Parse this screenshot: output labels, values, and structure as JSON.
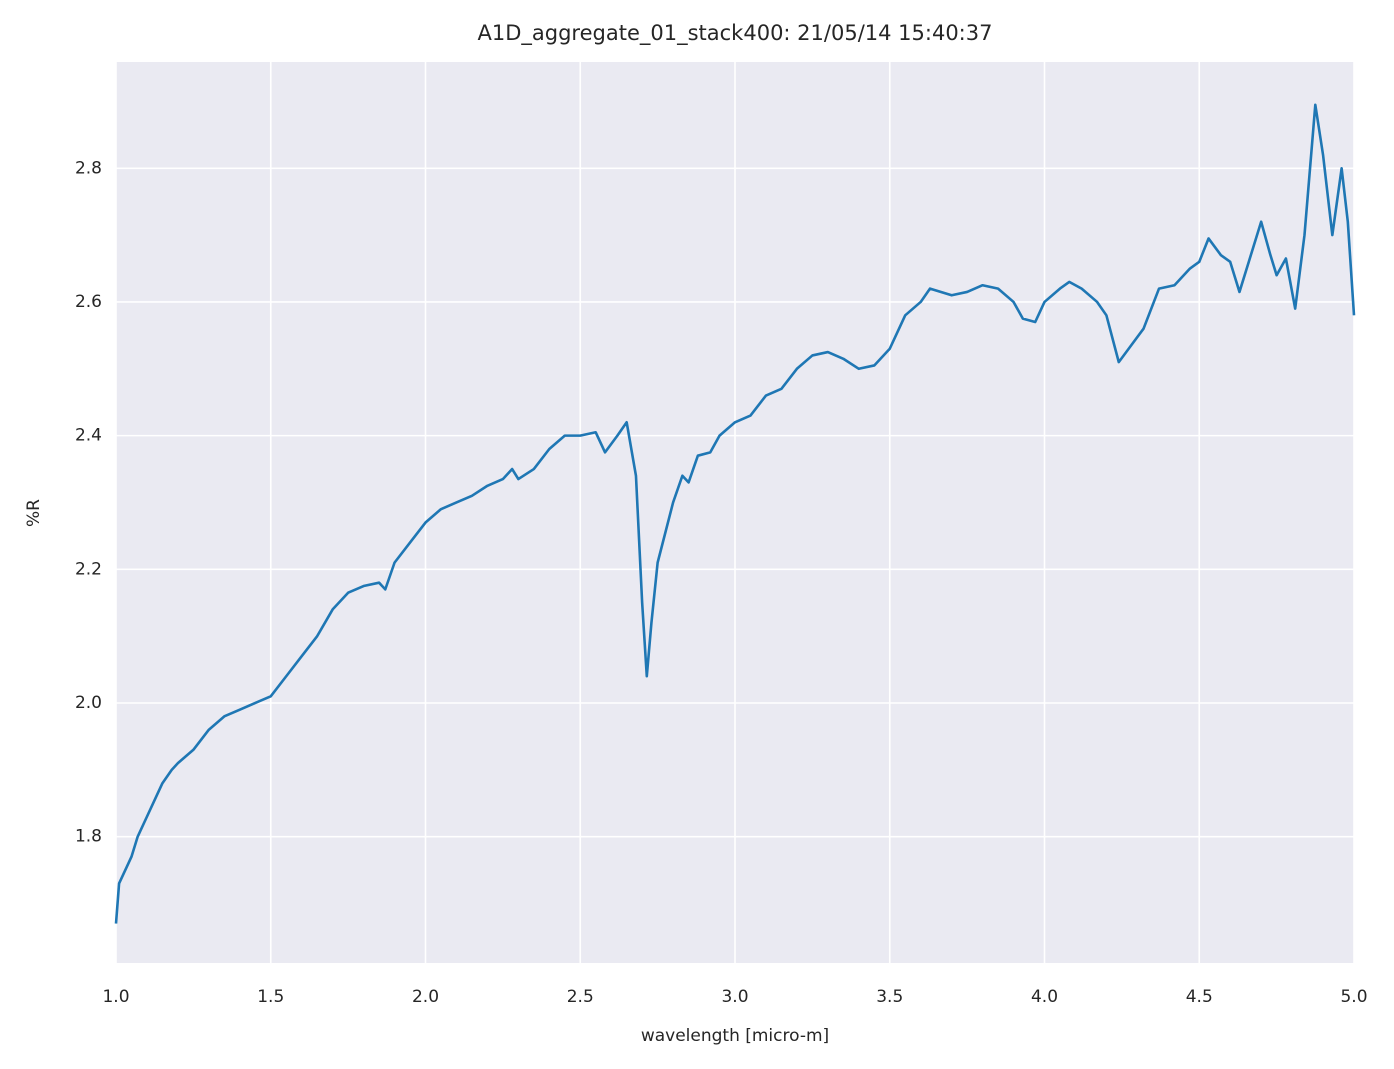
{
  "chart_data": {
    "type": "line",
    "title": "A1D_aggregate_01_stack400:  21/05/14 15:40:37",
    "x_label": "wavelength [micro-m]",
    "y_label": "%R",
    "x": [
      1.0,
      1.01,
      1.03,
      1.05,
      1.07,
      1.1,
      1.13,
      1.15,
      1.18,
      1.2,
      1.25,
      1.3,
      1.35,
      1.4,
      1.45,
      1.5,
      1.55,
      1.6,
      1.65,
      1.7,
      1.75,
      1.8,
      1.85,
      1.87,
      1.9,
      1.95,
      2.0,
      2.05,
      2.1,
      2.15,
      2.2,
      2.25,
      2.28,
      2.3,
      2.35,
      2.4,
      2.45,
      2.5,
      2.55,
      2.58,
      2.62,
      2.65,
      2.68,
      2.7,
      2.715,
      2.73,
      2.75,
      2.8,
      2.83,
      2.85,
      2.88,
      2.92,
      2.95,
      3.0,
      3.05,
      3.1,
      3.15,
      3.2,
      3.25,
      3.3,
      3.35,
      3.4,
      3.45,
      3.5,
      3.55,
      3.6,
      3.63,
      3.7,
      3.75,
      3.8,
      3.85,
      3.9,
      3.93,
      3.97,
      4.0,
      4.05,
      4.08,
      4.12,
      4.17,
      4.2,
      4.24,
      4.28,
      4.32,
      4.37,
      4.42,
      4.47,
      4.5,
      4.53,
      4.57,
      4.6,
      4.63,
      4.66,
      4.7,
      4.73,
      4.75,
      4.78,
      4.81,
      4.84,
      4.875,
      4.9,
      4.93,
      4.96,
      4.98,
      5.0
    ],
    "series": [
      {
        "color": "#1f77b4",
        "values": [
          1.67,
          1.73,
          1.75,
          1.77,
          1.8,
          1.83,
          1.86,
          1.88,
          1.9,
          1.91,
          1.93,
          1.96,
          1.98,
          1.99,
          2.0,
          2.01,
          2.04,
          2.07,
          2.1,
          2.14,
          2.165,
          2.175,
          2.18,
          2.17,
          2.21,
          2.24,
          2.27,
          2.29,
          2.3,
          2.31,
          2.325,
          2.335,
          2.35,
          2.335,
          2.35,
          2.38,
          2.4,
          2.4,
          2.405,
          2.375,
          2.4,
          2.42,
          2.34,
          2.15,
          2.04,
          2.12,
          2.21,
          2.3,
          2.34,
          2.33,
          2.37,
          2.375,
          2.4,
          2.42,
          2.43,
          2.46,
          2.47,
          2.5,
          2.52,
          2.525,
          2.515,
          2.5,
          2.505,
          2.53,
          2.58,
          2.6,
          2.62,
          2.61,
          2.615,
          2.625,
          2.62,
          2.6,
          2.575,
          2.57,
          2.6,
          2.62,
          2.63,
          2.62,
          2.6,
          2.58,
          2.51,
          2.535,
          2.56,
          2.62,
          2.625,
          2.65,
          2.66,
          2.695,
          2.67,
          2.66,
          2.615,
          2.66,
          2.72,
          2.67,
          2.64,
          2.665,
          2.59,
          2.7,
          2.895,
          2.82,
          2.7,
          2.8,
          2.72,
          2.58
        ]
      }
    ],
    "xlim": [
      1.0,
      5.0
    ],
    "ylim": [
      1.611,
      2.959
    ],
    "xticks": [
      {
        "value": 1,
        "label": "1.0"
      },
      1.5,
      {
        "value": 2,
        "label": "2.0"
      },
      2.5,
      {
        "value": 3,
        "label": "3.0"
      },
      3.5,
      {
        "value": 4,
        "label": "4.0"
      },
      4.5,
      {
        "value": 5,
        "label": "5.0"
      }
    ],
    "yticks": [
      1.8,
      {
        "value": 2,
        "label": "2.0"
      },
      2.2,
      2.4,
      2.6,
      2.8
    ],
    "grid": true
  }
}
